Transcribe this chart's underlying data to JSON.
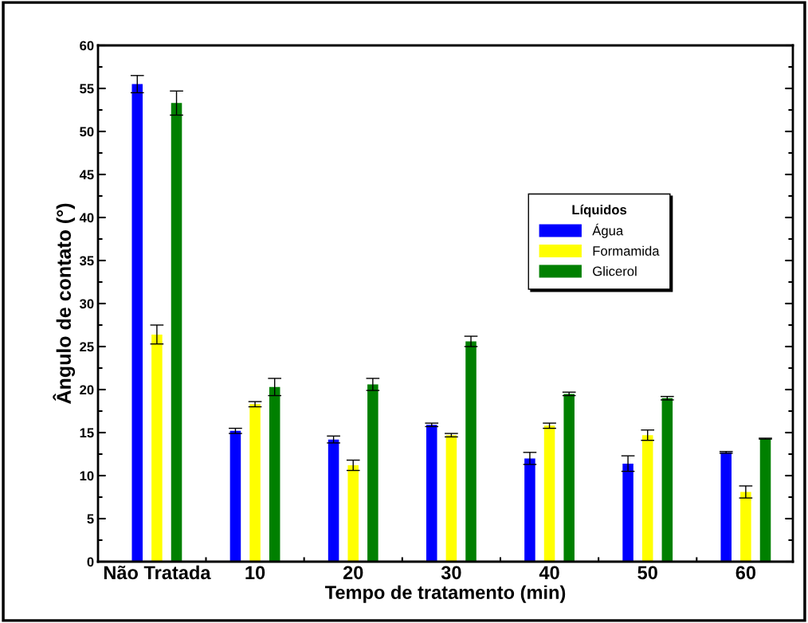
{
  "chart_data": {
    "type": "bar",
    "xlabel": "Tempo de tratamento (min)",
    "ylabel": "Ângulo de contato (°)",
    "legend_title": "Líquidos",
    "categories": [
      "Não Tratada",
      "10",
      "20",
      "30",
      "40",
      "50",
      "60"
    ],
    "series": [
      {
        "name": "Água",
        "color": "#0000ff",
        "values": [
          55.5,
          15.2,
          14.2,
          15.9,
          12.0,
          11.4,
          12.7
        ],
        "errors": [
          1.0,
          0.3,
          0.4,
          0.2,
          0.7,
          0.9,
          0.1
        ]
      },
      {
        "name": "Formamida",
        "color": "#ffff00",
        "values": [
          26.4,
          18.3,
          11.2,
          14.7,
          15.8,
          14.7,
          8.1
        ],
        "errors": [
          1.1,
          0.3,
          0.6,
          0.2,
          0.3,
          0.6,
          0.7
        ]
      },
      {
        "name": "Glicerol",
        "color": "#008000",
        "values": [
          53.3,
          20.3,
          20.6,
          25.6,
          19.5,
          19.0,
          14.3
        ],
        "errors": [
          1.4,
          1.0,
          0.7,
          0.6,
          0.2,
          0.2,
          0.05
        ]
      }
    ],
    "ylim": [
      0,
      60
    ],
    "yticks": [
      0,
      5,
      10,
      15,
      20,
      25,
      30,
      35,
      40,
      45,
      50,
      55,
      60
    ],
    "grid": false,
    "legend": "right"
  }
}
